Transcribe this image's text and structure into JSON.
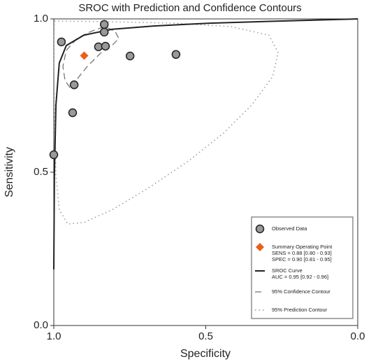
{
  "chart_data": {
    "type": "scatter",
    "title": "SROC with Prediction and Confidence Contours",
    "x_label": "Specificity",
    "y_label": "Sensitivity",
    "xlim": [
      1.0,
      0.0
    ],
    "ylim": [
      0.0,
      1.0
    ],
    "xticks": [
      {
        "value": 1.0,
        "label": "1.0"
      },
      {
        "value": 0.5,
        "label": "0.5"
      },
      {
        "value": 0.0,
        "label": "0.0"
      }
    ],
    "yticks": [
      {
        "value": 0.0,
        "label": "0.0"
      },
      {
        "value": 0.5,
        "label": "0.5"
      },
      {
        "value": 1.0,
        "label": "1.0"
      }
    ],
    "legend": "bottom-right",
    "series": [
      {
        "name": "Observed Data",
        "style": "circles",
        "color": "#999999",
        "x": [
          0.975,
          0.834,
          0.834,
          0.853,
          0.83,
          0.749,
          0.598,
          0.933,
          0.938,
          1.0
        ],
        "y": [
          0.925,
          0.982,
          0.957,
          0.909,
          0.911,
          0.879,
          0.884,
          0.785,
          0.694,
          0.557
        ]
      },
      {
        "name": "Summary Operating Point",
        "style": "diamond",
        "color": "#e8601c",
        "notes": [
          "SENS = 0.88 [0.80 - 0.93]",
          "SPEC = 0.90 [0.81 - 0.95]"
        ],
        "x": [
          0.9
        ],
        "y": [
          0.88
        ]
      },
      {
        "name": "SROC Curve",
        "style": "solid",
        "color": "#222222",
        "notes": [
          "AUC = 0.95 [0.92 - 0.96]"
        ],
        "x": [
          1.0,
          0.998,
          0.993,
          0.982,
          0.959,
          0.901,
          0.809,
          0.671,
          0.487,
          0.257,
          0.0
        ],
        "y": [
          0.183,
          0.491,
          0.719,
          0.856,
          0.913,
          0.947,
          0.966,
          0.977,
          0.986,
          0.993,
          1.0
        ]
      },
      {
        "name": "95% Confidence Contour",
        "style": "dashed",
        "color": "#777777",
        "x": [
          0.947,
          0.963,
          0.97,
          0.959,
          0.924,
          0.878,
          0.832,
          0.798,
          0.786,
          0.809,
          0.844,
          0.89,
          0.936,
          0.947
        ],
        "y": [
          0.776,
          0.799,
          0.845,
          0.897,
          0.936,
          0.959,
          0.975,
          0.959,
          0.936,
          0.913,
          0.89,
          0.845,
          0.788,
          0.776
        ]
      },
      {
        "name": "95% Prediction Contour",
        "style": "dotted",
        "color": "#999999",
        "x": [
          0.998,
          0.832,
          0.602,
          0.418,
          0.292,
          0.262,
          0.28,
          0.349,
          0.441,
          0.556,
          0.694,
          0.809,
          0.901,
          0.954,
          0.982,
          0.993,
          0.998,
          1.0,
          0.998
        ],
        "y": [
          0.993,
          0.991,
          0.986,
          0.975,
          0.947,
          0.89,
          0.811,
          0.719,
          0.628,
          0.537,
          0.445,
          0.377,
          0.336,
          0.331,
          0.377,
          0.491,
          0.719,
          0.925,
          0.993
        ]
      }
    ]
  }
}
